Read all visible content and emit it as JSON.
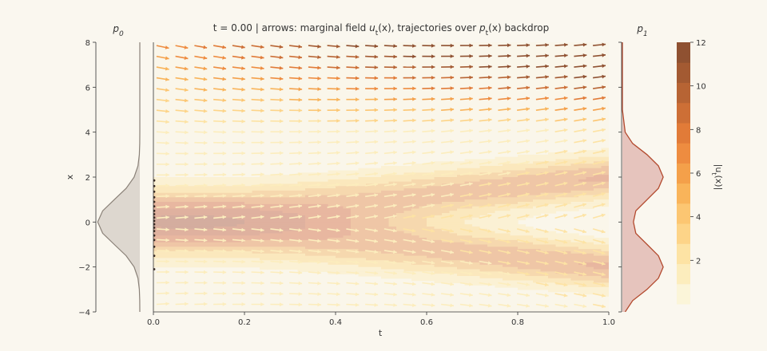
{
  "figure": {
    "title": "t = 0.00   |   arrows: marginal field u_t(x), trajectories over p_t(x) backdrop",
    "panel_left_label": "p0",
    "panel_right_label": "p1"
  },
  "chart_data": [
    {
      "type": "area",
      "panel": "left-density",
      "title": "p0",
      "description_series": "single Gaussian density, mean 0, sd ~1, plotted horizontally against x",
      "x_values": [
        -4,
        -3.5,
        -3,
        -2.5,
        -2,
        -1.5,
        -1,
        -0.5,
        0,
        0.5,
        1,
        1.5,
        2,
        2.5,
        3,
        3.5,
        4,
        5,
        6,
        7,
        8
      ],
      "density": [
        0.0001,
        0.0009,
        0.0044,
        0.0175,
        0.054,
        0.1295,
        0.242,
        0.352,
        0.399,
        0.352,
        0.242,
        0.1295,
        0.054,
        0.0175,
        0.0044,
        0.0009,
        0.0001,
        0,
        0,
        0,
        0
      ],
      "ylim": [
        -4,
        8
      ],
      "color": "#888078"
    },
    {
      "type": "heatmap",
      "panel": "main",
      "title": "t = 0.00   |   arrows: marginal field u_t(x), trajectories over p_t(x) backdrop",
      "xlabel": "t",
      "ylabel": "x",
      "xlim": [
        0,
        1
      ],
      "ylim": [
        -4,
        8
      ],
      "xticks": [
        "0.0",
        "0.2",
        "0.4",
        "0.6",
        "0.8",
        "1.0"
      ],
      "yticks": [
        "−4",
        "−2",
        "0",
        "2",
        "4",
        "6",
        "8"
      ],
      "backdrop_modes_at_t1": [
        2,
        -2
      ],
      "backdrop_start": {
        "mean": 0,
        "sd": 1
      },
      "arrow_colormap": "YlOrBr",
      "arrow_max_magnitude": 12,
      "trajectory_start_points_t0": [
        -2.1,
        -1.5,
        -1.1,
        -0.8,
        -0.6,
        -0.4,
        -0.25,
        -0.1,
        0.05,
        0.2,
        0.35,
        0.5,
        0.7,
        0.9,
        1.1,
        1.35,
        1.6,
        1.85
      ]
    },
    {
      "type": "area",
      "panel": "right-density",
      "title": "p1",
      "description_series": "bimodal mixture of Gaussians with modes at x = 2 and x = -2",
      "x_values": [
        -4,
        -3.5,
        -3,
        -2.5,
        -2,
        -1.5,
        -1,
        -0.5,
        0,
        0.5,
        1,
        1.5,
        2,
        2.5,
        3,
        3.5,
        4,
        5,
        6,
        7,
        8
      ],
      "density": [
        0.027,
        0.1,
        0.241,
        0.352,
        0.399,
        0.352,
        0.242,
        0.131,
        0.108,
        0.131,
        0.242,
        0.352,
        0.399,
        0.352,
        0.241,
        0.1,
        0.027,
        0,
        0,
        0,
        0
      ],
      "ylim": [
        -4,
        8
      ],
      "color": "#b34a2e"
    },
    {
      "type": "heatmap",
      "panel": "colorbar",
      "label": "|u_t(x)|",
      "range": [
        0,
        12
      ],
      "ticks": [
        "2",
        "4",
        "6",
        "8",
        "10",
        "12"
      ],
      "colors": [
        "#fbf5d9",
        "#fcedbd",
        "#fde3a4",
        "#fdd488",
        "#fcc672",
        "#f9b45a",
        "#f4a04a",
        "#ee8c40",
        "#e17b38",
        "#cd6f36",
        "#b76434",
        "#a35a32",
        "#8f5131"
      ]
    }
  ]
}
